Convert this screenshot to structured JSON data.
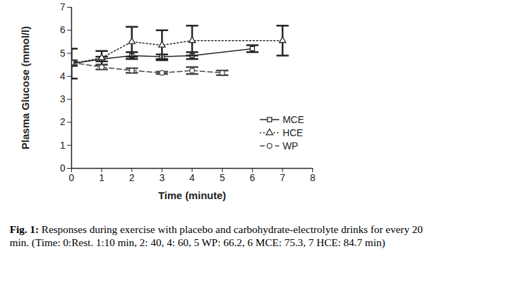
{
  "chart_data": {
    "type": "line",
    "x_label": "Time (minute)",
    "y_label": "Plasma Glucose (mmol/l)",
    "caption": "Fig. 1: Responses during exercise with placebo and carbohydrate-electrolyte drinks for every 20 min. (Time: 0:Rest. 1:10 min, 2: 40, 4: 60, 5 WP: 66.2, 6 MCE: 75.3, 7 HCE: 84.7 min)",
    "xlim": [
      0,
      8
    ],
    "xticks": [
      0,
      1,
      2,
      3,
      4,
      5,
      6,
      7,
      8
    ],
    "ylim": [
      0,
      7
    ],
    "yticks": [
      0,
      1,
      2,
      3,
      4,
      5,
      6,
      7
    ],
    "legend": "lower right",
    "series": [
      {
        "name": "MCE",
        "color": "#222222",
        "marker": "square",
        "line_style": "solid",
        "x": [
          0,
          1,
          2,
          3,
          4,
          6
        ],
        "values": [
          4.55,
          4.75,
          4.9,
          4.85,
          4.9,
          5.2
        ],
        "errors": [
          0.1,
          0.1,
          0.15,
          0.1,
          0.15,
          0.15
        ]
      },
      {
        "name": "HCE",
        "color": "#222222",
        "marker": "triangle",
        "line_style": "dotted",
        "x": [
          0,
          1,
          2,
          3,
          4,
          7
        ],
        "values": [
          4.55,
          4.8,
          5.5,
          5.35,
          5.55,
          5.55
        ],
        "errors": [
          0.65,
          0.3,
          0.65,
          0.65,
          0.65,
          0.65
        ]
      },
      {
        "name": "WP",
        "color": "#444444",
        "marker": "circle",
        "line_style": "dashed",
        "x": [
          0,
          1,
          2,
          3,
          4,
          5
        ],
        "values": [
          4.6,
          4.4,
          4.25,
          4.15,
          4.25,
          4.15
        ],
        "errors": [
          0.1,
          0.1,
          0.1,
          0.05,
          0.15,
          0.1
        ]
      }
    ]
  }
}
